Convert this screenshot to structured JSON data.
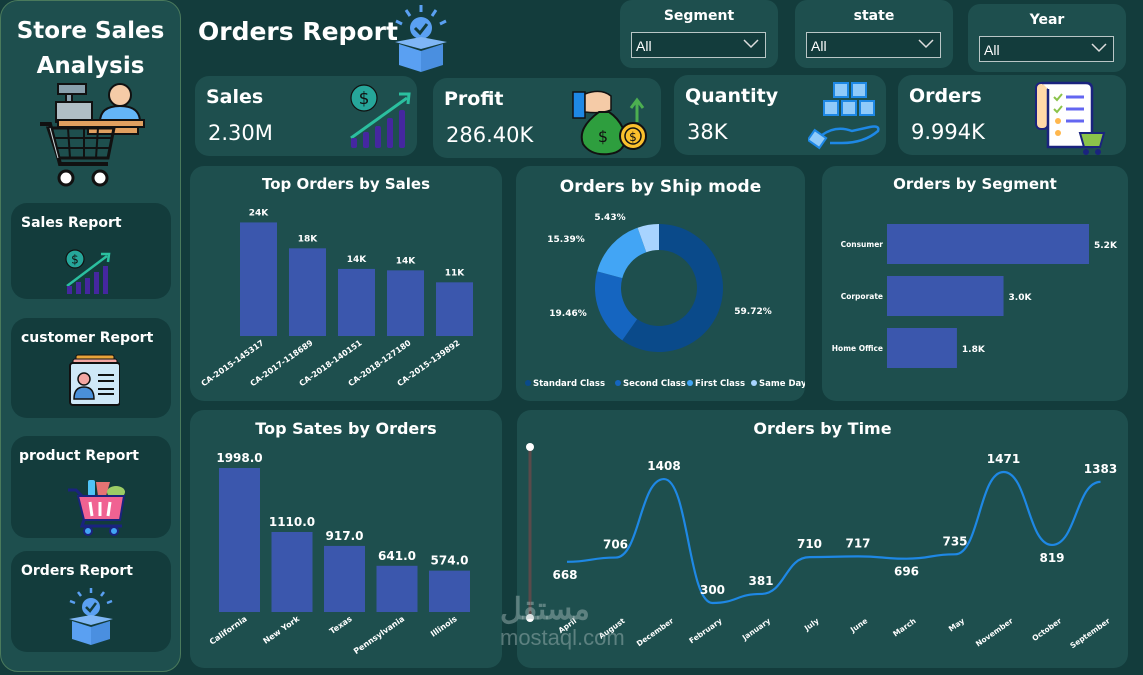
{
  "sidebar": {
    "title_line1": "Store Sales",
    "title_line2": "Analysis",
    "nav": [
      {
        "label": "Sales Report",
        "icon": "sales-growth-icon"
      },
      {
        "label": "customer Report",
        "icon": "id-card-icon"
      },
      {
        "label": "product Report",
        "icon": "shopping-cart-icon"
      },
      {
        "label": "Orders Report",
        "icon": "box-check-icon"
      }
    ]
  },
  "header": {
    "title": "Orders Report",
    "icon": "box-check-icon"
  },
  "slicers": [
    {
      "label": "Segment",
      "value": "All"
    },
    {
      "label": "state",
      "value": "All"
    },
    {
      "label": "Year",
      "value": "All"
    }
  ],
  "kpis": [
    {
      "label": "Sales",
      "value": "2.30M",
      "icon": "sales-growth-icon"
    },
    {
      "label": "Profit",
      "value": "286.40K",
      "icon": "money-bag-icon"
    },
    {
      "label": "Quantity",
      "value": "38K",
      "icon": "boxes-hand-icon"
    },
    {
      "label": "Orders",
      "value": "9.994K",
      "icon": "order-list-icon"
    }
  ],
  "colors": {
    "bar": "#3b57ad",
    "line": "#1e88e5",
    "panel": "#1e4f4e",
    "background": "#133c3c",
    "donut": [
      "#0a4a8a",
      "#1565c0",
      "#42a5f5",
      "#a8d4ff"
    ]
  },
  "chart_data": [
    {
      "type": "bar",
      "title": "Top Orders by Sales",
      "categories": [
        "CA-2015-145317",
        "CA-2017-118689",
        "CA-2018-140151",
        "CA-2018-127180",
        "CA-2015-139892"
      ],
      "values": [
        23.7,
        18.3,
        14.0,
        13.7,
        11.2
      ],
      "labels": [
        "24K",
        "18K",
        "14K",
        "14K",
        "11K"
      ],
      "ylim": [
        0,
        24
      ]
    },
    {
      "type": "pie",
      "title": "Orders by Ship mode",
      "categories": [
        "Standard Class",
        "Second Class",
        "First Class",
        "Same Day"
      ],
      "values": [
        59.72,
        19.46,
        15.39,
        5.43
      ],
      "labels": [
        "59.72%",
        "19.46%",
        "15.39%",
        "5.43%"
      ],
      "legend": "bottom"
    },
    {
      "type": "bar",
      "orientation": "horizontal",
      "title": "Orders by Segment",
      "categories": [
        "Consumer",
        "Corporate",
        "Home Office"
      ],
      "values": [
        5.2,
        3.0,
        1.8
      ],
      "labels": [
        "5.2K",
        "3.0K",
        "1.8K"
      ],
      "xlim": [
        0,
        5.2
      ]
    },
    {
      "type": "bar",
      "title": "Top Sates by Orders",
      "categories": [
        "California",
        "New York",
        "Texas",
        "Pennsylvania",
        "Illinois"
      ],
      "values": [
        1998.0,
        1110.0,
        917.0,
        641.0,
        574.0
      ],
      "labels": [
        "1998.0",
        "1110.0",
        "917.0",
        "641.0",
        "574.0"
      ],
      "ylim": [
        0,
        1998
      ]
    },
    {
      "type": "line",
      "title": "Orders by Time",
      "categories": [
        "April",
        "August",
        "December",
        "February",
        "January",
        "July",
        "June",
        "March",
        "May",
        "November",
        "October",
        "September"
      ],
      "values": [
        668,
        706,
        1408,
        300,
        381,
        710,
        717,
        696,
        735,
        1471,
        819,
        1383
      ],
      "ylim": [
        300,
        1471
      ]
    }
  ],
  "watermark": {
    "arabic": "مستقل",
    "latin": "mostaql.com"
  }
}
